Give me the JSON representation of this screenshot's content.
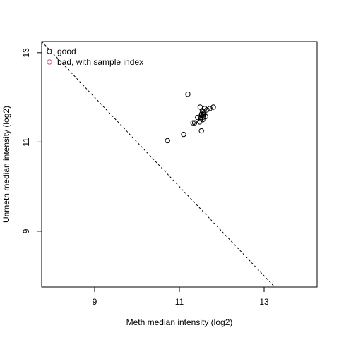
{
  "chart_data": {
    "type": "scatter",
    "title": "",
    "xlabel": "Meth median intensity (log2)",
    "ylabel": "Unmeth median intensity (log2)",
    "xlim": [
      7.75,
      14.25
    ],
    "ylim": [
      7.75,
      13.25
    ],
    "x_ticks": [
      9,
      11,
      13
    ],
    "y_ticks": [
      9,
      11,
      13
    ],
    "x_tick_labels": [
      "9",
      "11",
      "13"
    ],
    "y_tick_labels": [
      "9",
      "11",
      "13"
    ],
    "grid": false,
    "legend": {
      "placement": "top-left",
      "entries": [
        {
          "label": "good",
          "color": "#000000"
        },
        {
          "label": "bad, with sample index",
          "color": "#DF536B"
        }
      ]
    },
    "cutoff_line": {
      "style": "dashed",
      "points": [
        [
          7.75,
          13.25
        ],
        [
          13.25,
          7.75
        ]
      ]
    },
    "series": [
      {
        "name": "good",
        "color": "#000000",
        "marker": "open-circle",
        "x": [
          10.72,
          11.1,
          11.2,
          11.32,
          11.36,
          11.43,
          11.48,
          11.49,
          11.5,
          11.5,
          11.52,
          11.53,
          11.54,
          11.55,
          11.55,
          11.56,
          11.57,
          11.58,
          11.6,
          11.62,
          11.65,
          11.72,
          11.8,
          11.52,
          11.56
        ],
        "y": [
          11.03,
          11.17,
          12.07,
          11.43,
          11.43,
          11.55,
          11.45,
          11.78,
          11.55,
          11.52,
          11.25,
          11.6,
          11.7,
          11.55,
          11.5,
          11.58,
          11.62,
          11.65,
          11.75,
          11.57,
          11.72,
          11.75,
          11.78,
          11.62,
          11.68
        ]
      },
      {
        "name": "bad, with sample index",
        "color": "#DF536B",
        "marker": "open-circle",
        "x": [],
        "y": []
      }
    ]
  }
}
